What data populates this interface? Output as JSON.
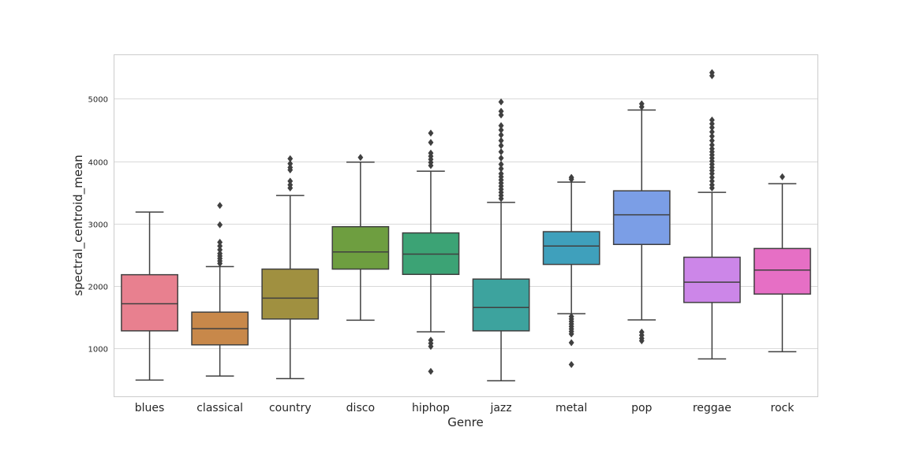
{
  "chart_data": {
    "type": "box",
    "title": "",
    "xlabel": "Genre",
    "ylabel": "spectral_centroid_mean",
    "ylim": [
      230,
      5700
    ],
    "yticks": [
      1000,
      2000,
      3000,
      4000,
      5000
    ],
    "grid": "horizontal",
    "categories": [
      "blues",
      "classical",
      "country",
      "disco",
      "hiphop",
      "jazz",
      "metal",
      "pop",
      "reggae",
      "rock"
    ],
    "boxes": [
      {
        "category": "blues",
        "color": "#e8808f",
        "q1": 1280,
        "median": 1715,
        "q3": 2180,
        "whisker_low": 490,
        "whisker_high": 3185,
        "outliers": []
      },
      {
        "category": "classical",
        "color": "#c8884a",
        "q1": 1055,
        "median": 1315,
        "q3": 1580,
        "whisker_low": 555,
        "whisker_high": 2310,
        "outliers": [
          2360,
          2400,
          2440,
          2480,
          2520,
          2580,
          2640,
          2700,
          2980,
          3290
        ]
      },
      {
        "category": "country",
        "color": "#a09040",
        "q1": 1470,
        "median": 1805,
        "q3": 2270,
        "whisker_low": 515,
        "whisker_high": 3450,
        "outliers": [
          3570,
          3620,
          3680,
          3860,
          3900,
          3960,
          4040
        ]
      },
      {
        "category": "disco",
        "color": "#6e9e40",
        "q1": 2270,
        "median": 2545,
        "q3": 2950,
        "whisker_low": 1450,
        "whisker_high": 3985,
        "outliers": [
          4060
        ]
      },
      {
        "category": "hiphop",
        "color": "#3ca375",
        "q1": 2185,
        "median": 2510,
        "q3": 2850,
        "whisker_low": 1265,
        "whisker_high": 3840,
        "outliers": [
          630,
          1030,
          1080,
          1130,
          3930,
          3980,
          4030,
          4080,
          4130,
          4300,
          4450
        ]
      },
      {
        "category": "jazz",
        "color": "#3da39e",
        "q1": 1280,
        "median": 1655,
        "q3": 2110,
        "whisker_low": 480,
        "whisker_high": 3340,
        "outliers": [
          3400,
          3450,
          3500,
          3550,
          3600,
          3650,
          3700,
          3750,
          3800,
          3880,
          3950,
          4050,
          4150,
          4250,
          4330,
          4420,
          4500,
          4570,
          4740,
          4800,
          4950
        ]
      },
      {
        "category": "metal",
        "color": "#3fa0bc",
        "q1": 2345,
        "median": 2640,
        "q3": 2870,
        "whisker_low": 1555,
        "whisker_high": 3665,
        "outliers": [
          740,
          1090,
          1230,
          1270,
          1310,
          1350,
          1390,
          1430,
          1470,
          1510,
          3710,
          3740
        ]
      },
      {
        "category": "pop",
        "color": "#7b9ee6",
        "q1": 2665,
        "median": 3140,
        "q3": 3525,
        "whisker_low": 1455,
        "whisker_high": 4820,
        "outliers": [
          1120,
          1160,
          1210,
          1260,
          4870,
          4920
        ]
      },
      {
        "category": "reggae",
        "color": "#cc86e8",
        "q1": 1735,
        "median": 2060,
        "q3": 2460,
        "whisker_low": 830,
        "whisker_high": 3500,
        "outliers": [
          3570,
          3620,
          3680,
          3740,
          3800,
          3850,
          3900,
          3950,
          4000,
          4050,
          4100,
          4150,
          4200,
          4260,
          4330,
          4400,
          4470,
          4540,
          4600,
          4660,
          5370,
          5420
        ]
      },
      {
        "category": "rock",
        "color": "#e66fc5",
        "q1": 1870,
        "median": 2255,
        "q3": 2600,
        "whisker_low": 945,
        "whisker_high": 3640,
        "outliers": [
          3750
        ]
      }
    ]
  }
}
